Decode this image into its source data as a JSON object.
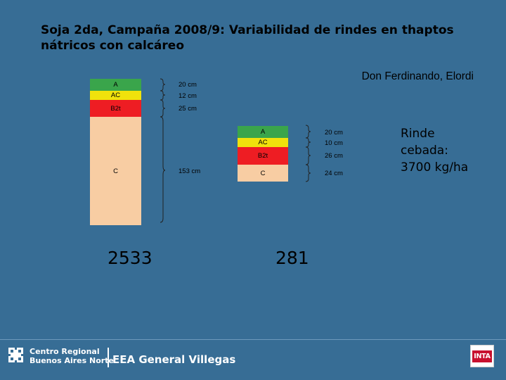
{
  "title": "Soja 2da, Campaña 2008/9: Variabilidad de rindes en thaptos nátricos con calcáreo",
  "subtitle": "Don Ferdinando, Elordi",
  "rinde": [
    "Rinde",
    "cebada:",
    "3700 kg/ha"
  ],
  "profile1": {
    "number": "2533",
    "layers": [
      {
        "name": "A",
        "depth": "20 cm",
        "color": "#3aa54b"
      },
      {
        "name": "AC",
        "depth": "12 cm",
        "color": "#f0e20c"
      },
      {
        "name": "B2t",
        "depth": "25 cm",
        "color": "#ee1d23"
      },
      {
        "name": "C",
        "depth": "153 cm",
        "color": "#f8cda3"
      }
    ]
  },
  "profile2": {
    "number": "281",
    "layers": [
      {
        "name": "A",
        "depth": "20 cm",
        "color": "#3aa54b"
      },
      {
        "name": "AC",
        "depth": "10 cm",
        "color": "#f0e20c"
      },
      {
        "name": "B2t",
        "depth": "26 cm",
        "color": "#ee1d23"
      },
      {
        "name": "C",
        "depth": "24 cm",
        "color": "#f8cda3"
      }
    ]
  },
  "footer": {
    "center_line1": "Centro Regional",
    "center_line2": "Buenos Aires Norte",
    "eea": "EEA General Villegas",
    "logo": "INTA"
  },
  "icons": {
    "logo": "cross-logo-icon"
  }
}
